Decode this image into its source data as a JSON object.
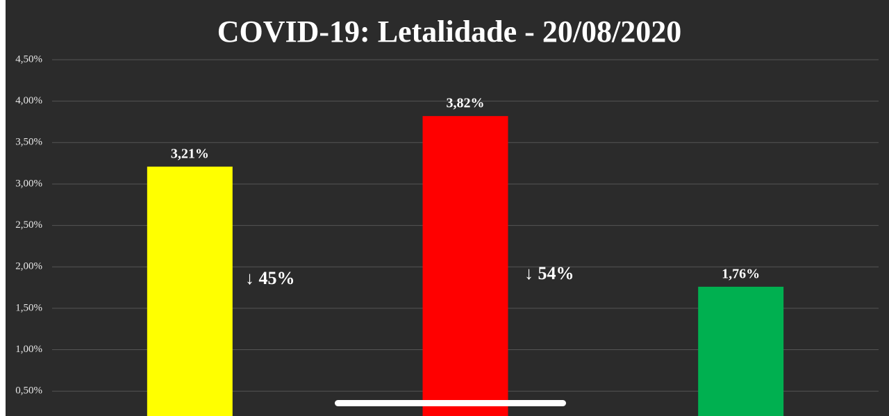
{
  "chart_data": {
    "type": "bar",
    "title": "COVID-19: Letalidade - 20/08/2020",
    "categories": [
      null,
      null,
      null
    ],
    "values": [
      3.21,
      3.82,
      1.76
    ],
    "value_labels": [
      "3,21%",
      "3,82%",
      "1,76%"
    ],
    "colors": [
      "#ffff00",
      "#ff0000",
      "#00b050"
    ],
    "ylim": [
      0.2,
      4.5
    ],
    "yticks": [
      {
        "value": 0.5,
        "label": "0,50%"
      },
      {
        "value": 1.0,
        "label": "1,00%"
      },
      {
        "value": 1.5,
        "label": "1,50%"
      },
      {
        "value": 2.0,
        "label": "2,00%"
      },
      {
        "value": 2.5,
        "label": "2,50%"
      },
      {
        "value": 3.0,
        "label": "3,00%"
      },
      {
        "value": 3.5,
        "label": "3,50%"
      },
      {
        "value": 4.0,
        "label": "4,00%"
      },
      {
        "value": 4.5,
        "label": "4,50%"
      }
    ],
    "grid": true,
    "annotations": [
      "↓ 45%",
      "↓ 54%"
    ]
  }
}
